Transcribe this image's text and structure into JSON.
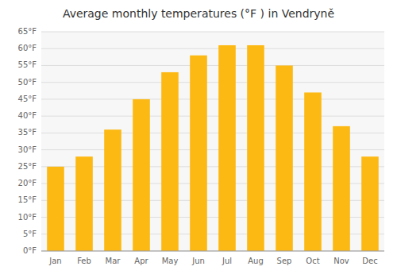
{
  "chart_data": {
    "type": "bar",
    "title": "Average monthly temperatures (°F ) in Vendryně",
    "categories": [
      "Jan",
      "Feb",
      "Mar",
      "Apr",
      "May",
      "Jun",
      "Jul",
      "Aug",
      "Sep",
      "Oct",
      "Nov",
      "Dec"
    ],
    "values": [
      25,
      28,
      36,
      45,
      53,
      58,
      61,
      61,
      55,
      47,
      37,
      28
    ],
    "color": "#FDB913",
    "ylim": [
      0,
      65
    ],
    "yticks": [
      {
        "value": 0,
        "label": "0°F"
      },
      {
        "value": 5,
        "label": "5°F"
      },
      {
        "value": 10,
        "label": "10°F"
      },
      {
        "value": 15,
        "label": "15°F"
      },
      {
        "value": 20,
        "label": "20°F"
      },
      {
        "value": 25,
        "label": "25°F"
      },
      {
        "value": 30,
        "label": "30°F"
      },
      {
        "value": 35,
        "label": "35°F"
      },
      {
        "value": 40,
        "label": "40°F"
      },
      {
        "value": 45,
        "label": "45°F"
      },
      {
        "value": 50,
        "label": "50°F"
      },
      {
        "value": 55,
        "label": "55°F"
      },
      {
        "value": 60,
        "label": "60°F"
      },
      {
        "value": 65,
        "label": "65°F"
      }
    ],
    "grid": true
  }
}
